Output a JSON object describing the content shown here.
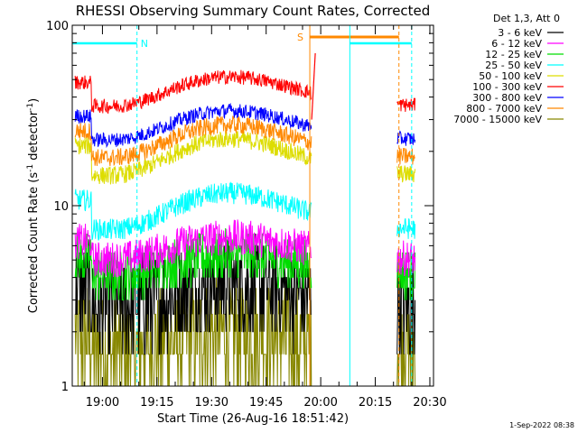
{
  "chart_data": {
    "type": "line",
    "title": "RHESSI Observing Summary Count Rates, Corrected",
    "xlabel": "Start Time (26-Aug-16 18:51:42)",
    "ylabel": "Corrected Count Rate (s⁻¹ detector⁻¹)",
    "ylabel_parts": [
      "Corrected Count Rate (s",
      "-1",
      " detector",
      "-1",
      ")"
    ],
    "y_scale": "log",
    "ylim": [
      1,
      100
    ],
    "yticks": [
      {
        "value": 1,
        "label": "1"
      },
      {
        "value": 10,
        "label": "10"
      },
      {
        "value": 100,
        "label": "100"
      }
    ],
    "xlim": [
      "18:51:42",
      "20:31:00"
    ],
    "xticks": [
      "19:00",
      "19:15",
      "19:30",
      "19:45",
      "20:00",
      "20:15",
      "20:30"
    ],
    "legend_position": "top-right",
    "legend_header": "Det 1,3, Att 0",
    "timestamp": "1-Sep-2022 08:38",
    "series": [
      {
        "name": "3 - 6 keV",
        "color": "#000000",
        "approx_level": 3.0
      },
      {
        "name": "6 - 12 keV",
        "color": "#ff00ff",
        "approx_level": 5.5
      },
      {
        "name": "12 - 25 keV",
        "color": "#00dd00",
        "approx_level": 4.5
      },
      {
        "name": "25 - 50 keV",
        "color": "#00ffff",
        "approx_level": 8.5
      },
      {
        "name": "50 - 100 keV",
        "color": "#dddd00",
        "approx_level": 17
      },
      {
        "name": "100 - 300 keV",
        "color": "#ff0000",
        "approx_level": 40
      },
      {
        "name": "300 - 800 keV",
        "color": "#0000ff",
        "approx_level": 26
      },
      {
        "name": "800 - 7000 keV",
        "color": "#ff8800",
        "approx_level": 21
      },
      {
        "name": "7000 - 15000 keV",
        "color": "#888800",
        "approx_level": 1.7
      }
    ],
    "data_gap": {
      "start": "19:57:30",
      "end": "20:20:30"
    },
    "flags": [
      {
        "label": "N",
        "start": "18:51:42",
        "end": "19:09:30",
        "color": "#00ffff"
      },
      {
        "label": "S",
        "start": "19:57:00",
        "end": "20:21:30",
        "color": "#ff8800"
      },
      {
        "label": "",
        "start": "20:08:00",
        "end": "20:25:00",
        "color": "#00ffff"
      }
    ],
    "grid": false
  }
}
